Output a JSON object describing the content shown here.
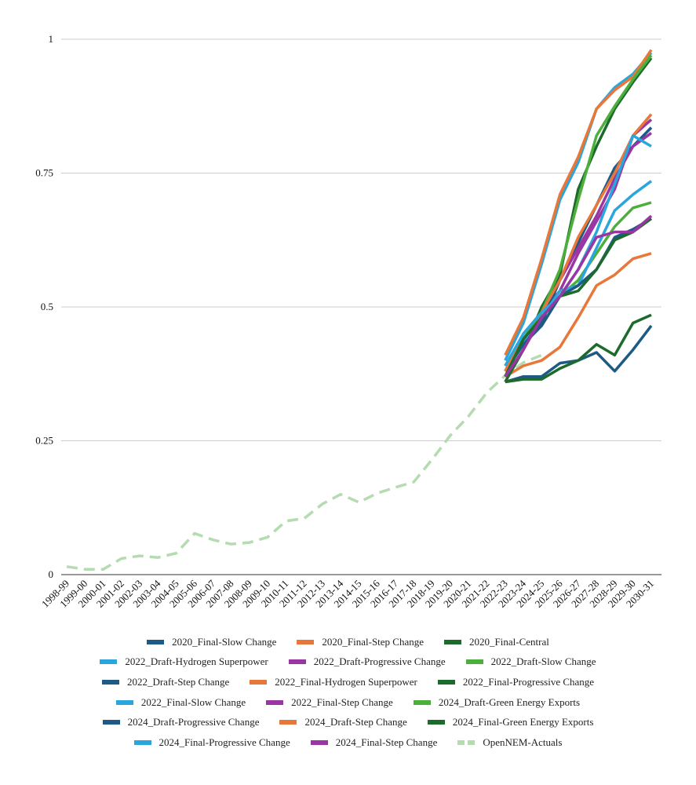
{
  "chart_data": {
    "type": "line",
    "categories": [
      "1998-99",
      "1999-00",
      "2000-01",
      "2001-02",
      "2002-03",
      "2003-04",
      "2004-05",
      "2005-06",
      "2006-07",
      "2007-08",
      "2008-09",
      "2009-10",
      "2010-11",
      "2011-12",
      "2012-13",
      "2013-14",
      "2014-15",
      "2015-16",
      "2016-17",
      "2017-18",
      "2018-19",
      "2019-20",
      "2020-21",
      "2021-22",
      "2022-23",
      "2023-24",
      "2024-25",
      "2025-26",
      "2026-27",
      "2027-28",
      "2028-29",
      "2029-30",
      "2030-31"
    ],
    "ylim": [
      0,
      1
    ],
    "yticks": [
      0,
      0.25,
      0.5,
      0.75,
      1
    ],
    "grid": true,
    "series": [
      {
        "name": "2020_Final-Slow Change",
        "color": "#1d5a85",
        "values": [
          null,
          null,
          null,
          null,
          null,
          null,
          null,
          null,
          null,
          null,
          null,
          null,
          null,
          null,
          null,
          null,
          null,
          null,
          null,
          null,
          null,
          null,
          null,
          null,
          0.36,
          0.37,
          0.37,
          0.395,
          0.4,
          0.415,
          0.38,
          0.42,
          0.465
        ]
      },
      {
        "name": "2020_Final-Step Change",
        "color": "#e8773a",
        "values": [
          null,
          null,
          null,
          null,
          null,
          null,
          null,
          null,
          null,
          null,
          null,
          null,
          null,
          null,
          null,
          null,
          null,
          null,
          null,
          null,
          null,
          null,
          null,
          null,
          0.37,
          0.39,
          0.4,
          0.425,
          0.48,
          0.54,
          0.56,
          0.59,
          0.6
        ]
      },
      {
        "name": "2020_Final-Central",
        "color": "#1c6b2c",
        "values": [
          null,
          null,
          null,
          null,
          null,
          null,
          null,
          null,
          null,
          null,
          null,
          null,
          null,
          null,
          null,
          null,
          null,
          null,
          null,
          null,
          null,
          null,
          null,
          null,
          0.36,
          0.365,
          0.365,
          0.385,
          0.4,
          0.43,
          0.41,
          0.47,
          0.485
        ]
      },
      {
        "name": "2022_Draft-Hydrogen Superpower",
        "color": "#2ba6dd",
        "values": [
          null,
          null,
          null,
          null,
          null,
          null,
          null,
          null,
          null,
          null,
          null,
          null,
          null,
          null,
          null,
          null,
          null,
          null,
          null,
          null,
          null,
          null,
          null,
          null,
          0.4,
          0.47,
          0.58,
          0.7,
          0.77,
          0.87,
          0.91,
          0.935,
          0.975
        ]
      },
      {
        "name": "2022_Draft-Progressive Change",
        "color": "#9a36a3",
        "values": [
          null,
          null,
          null,
          null,
          null,
          null,
          null,
          null,
          null,
          null,
          null,
          null,
          null,
          null,
          null,
          null,
          null,
          null,
          null,
          null,
          null,
          null,
          null,
          null,
          0.38,
          0.43,
          0.49,
          0.53,
          0.6,
          0.66,
          0.72,
          0.82,
          0.85
        ]
      },
      {
        "name": "2022_Draft-Slow Change",
        "color": "#4daf3b",
        "values": [
          null,
          null,
          null,
          null,
          null,
          null,
          null,
          null,
          null,
          null,
          null,
          null,
          null,
          null,
          null,
          null,
          null,
          null,
          null,
          null,
          null,
          null,
          null,
          null,
          0.38,
          0.43,
          0.48,
          0.52,
          0.55,
          0.6,
          0.65,
          0.685,
          0.695
        ]
      },
      {
        "name": "2022_Draft-Step Change",
        "color": "#1d5a85",
        "values": [
          null,
          null,
          null,
          null,
          null,
          null,
          null,
          null,
          null,
          null,
          null,
          null,
          null,
          null,
          null,
          null,
          null,
          null,
          null,
          null,
          null,
          null,
          null,
          null,
          0.39,
          0.44,
          0.47,
          0.55,
          0.62,
          0.69,
          0.76,
          0.8,
          0.835
        ]
      },
      {
        "name": "2022_Final-Hydrogen Superpower",
        "color": "#e8773a",
        "values": [
          null,
          null,
          null,
          null,
          null,
          null,
          null,
          null,
          null,
          null,
          null,
          null,
          null,
          null,
          null,
          null,
          null,
          null,
          null,
          null,
          null,
          null,
          null,
          null,
          0.41,
          0.48,
          0.59,
          0.71,
          0.78,
          0.87,
          0.905,
          0.93,
          0.98
        ]
      },
      {
        "name": "2022_Final-Progressive Change",
        "color": "#1c6b2c",
        "values": [
          null,
          null,
          null,
          null,
          null,
          null,
          null,
          null,
          null,
          null,
          null,
          null,
          null,
          null,
          null,
          null,
          null,
          null,
          null,
          null,
          null,
          null,
          null,
          null,
          0.36,
          0.42,
          0.5,
          0.56,
          0.72,
          0.8,
          0.87,
          0.92,
          0.965
        ]
      },
      {
        "name": "2022_Final-Slow Change",
        "color": "#2ba6dd",
        "values": [
          null,
          null,
          null,
          null,
          null,
          null,
          null,
          null,
          null,
          null,
          null,
          null,
          null,
          null,
          null,
          null,
          null,
          null,
          null,
          null,
          null,
          null,
          null,
          null,
          0.38,
          0.43,
          0.48,
          0.53,
          0.54,
          0.61,
          0.68,
          0.71,
          0.735
        ]
      },
      {
        "name": "2022_Final-Step Change",
        "color": "#9a36a3",
        "values": [
          null,
          null,
          null,
          null,
          null,
          null,
          null,
          null,
          null,
          null,
          null,
          null,
          null,
          null,
          null,
          null,
          null,
          null,
          null,
          null,
          null,
          null,
          null,
          null,
          0.37,
          0.42,
          0.49,
          0.55,
          0.61,
          0.67,
          0.74,
          0.8,
          0.825
        ]
      },
      {
        "name": "2024_Draft-Green Energy Exports",
        "color": "#4daf3b",
        "values": [
          null,
          null,
          null,
          null,
          null,
          null,
          null,
          null,
          null,
          null,
          null,
          null,
          null,
          null,
          null,
          null,
          null,
          null,
          null,
          null,
          null,
          null,
          null,
          null,
          0.37,
          0.44,
          0.49,
          0.57,
          0.7,
          0.82,
          0.875,
          0.925,
          0.97
        ]
      },
      {
        "name": "2024_Draft-Progressive Change",
        "color": "#1d5a85",
        "values": [
          null,
          null,
          null,
          null,
          null,
          null,
          null,
          null,
          null,
          null,
          null,
          null,
          null,
          null,
          null,
          null,
          null,
          null,
          null,
          null,
          null,
          null,
          null,
          null,
          0.38,
          0.43,
          0.465,
          0.52,
          0.54,
          0.57,
          0.63,
          0.645,
          0.665
        ]
      },
      {
        "name": "2024_Draft-Step Change",
        "color": "#e8773a",
        "values": [
          null,
          null,
          null,
          null,
          null,
          null,
          null,
          null,
          null,
          null,
          null,
          null,
          null,
          null,
          null,
          null,
          null,
          null,
          null,
          null,
          null,
          null,
          null,
          null,
          0.38,
          0.45,
          0.49,
          0.55,
          0.63,
          0.69,
          0.75,
          0.82,
          0.86
        ]
      },
      {
        "name": "2024_Final-Green Energy Exports",
        "color": "#1c6b2c",
        "values": [
          null,
          null,
          null,
          null,
          null,
          null,
          null,
          null,
          null,
          null,
          null,
          null,
          null,
          null,
          null,
          null,
          null,
          null,
          null,
          null,
          null,
          null,
          null,
          null,
          0.37,
          0.44,
          0.48,
          0.52,
          0.53,
          0.57,
          0.625,
          0.64,
          0.665
        ]
      },
      {
        "name": "2024_Final-Progressive Change",
        "color": "#2ba6dd",
        "values": [
          null,
          null,
          null,
          null,
          null,
          null,
          null,
          null,
          null,
          null,
          null,
          null,
          null,
          null,
          null,
          null,
          null,
          null,
          null,
          null,
          null,
          null,
          null,
          null,
          0.39,
          0.45,
          0.49,
          0.52,
          0.57,
          0.64,
          0.73,
          0.82,
          0.8
        ]
      },
      {
        "name": "2024_Final-Step Change",
        "color": "#9a36a3",
        "values": [
          null,
          null,
          null,
          null,
          null,
          null,
          null,
          null,
          null,
          null,
          null,
          null,
          null,
          null,
          null,
          null,
          null,
          null,
          null,
          null,
          null,
          null,
          null,
          null,
          0.37,
          0.42,
          0.48,
          0.52,
          0.57,
          0.63,
          0.64,
          0.64,
          0.67
        ]
      },
      {
        "name": "OpenNEM-Actuals",
        "color": "#b5dcb0",
        "dashed": true,
        "values": [
          0.015,
          0.01,
          0.01,
          0.03,
          0.035,
          0.032,
          0.04,
          0.077,
          0.065,
          0.057,
          0.06,
          0.07,
          0.1,
          0.105,
          0.132,
          0.15,
          0.135,
          0.152,
          0.163,
          0.173,
          0.215,
          0.26,
          0.296,
          0.34,
          0.372,
          0.396,
          0.41,
          null,
          null,
          null,
          null,
          null,
          null
        ]
      }
    ]
  }
}
